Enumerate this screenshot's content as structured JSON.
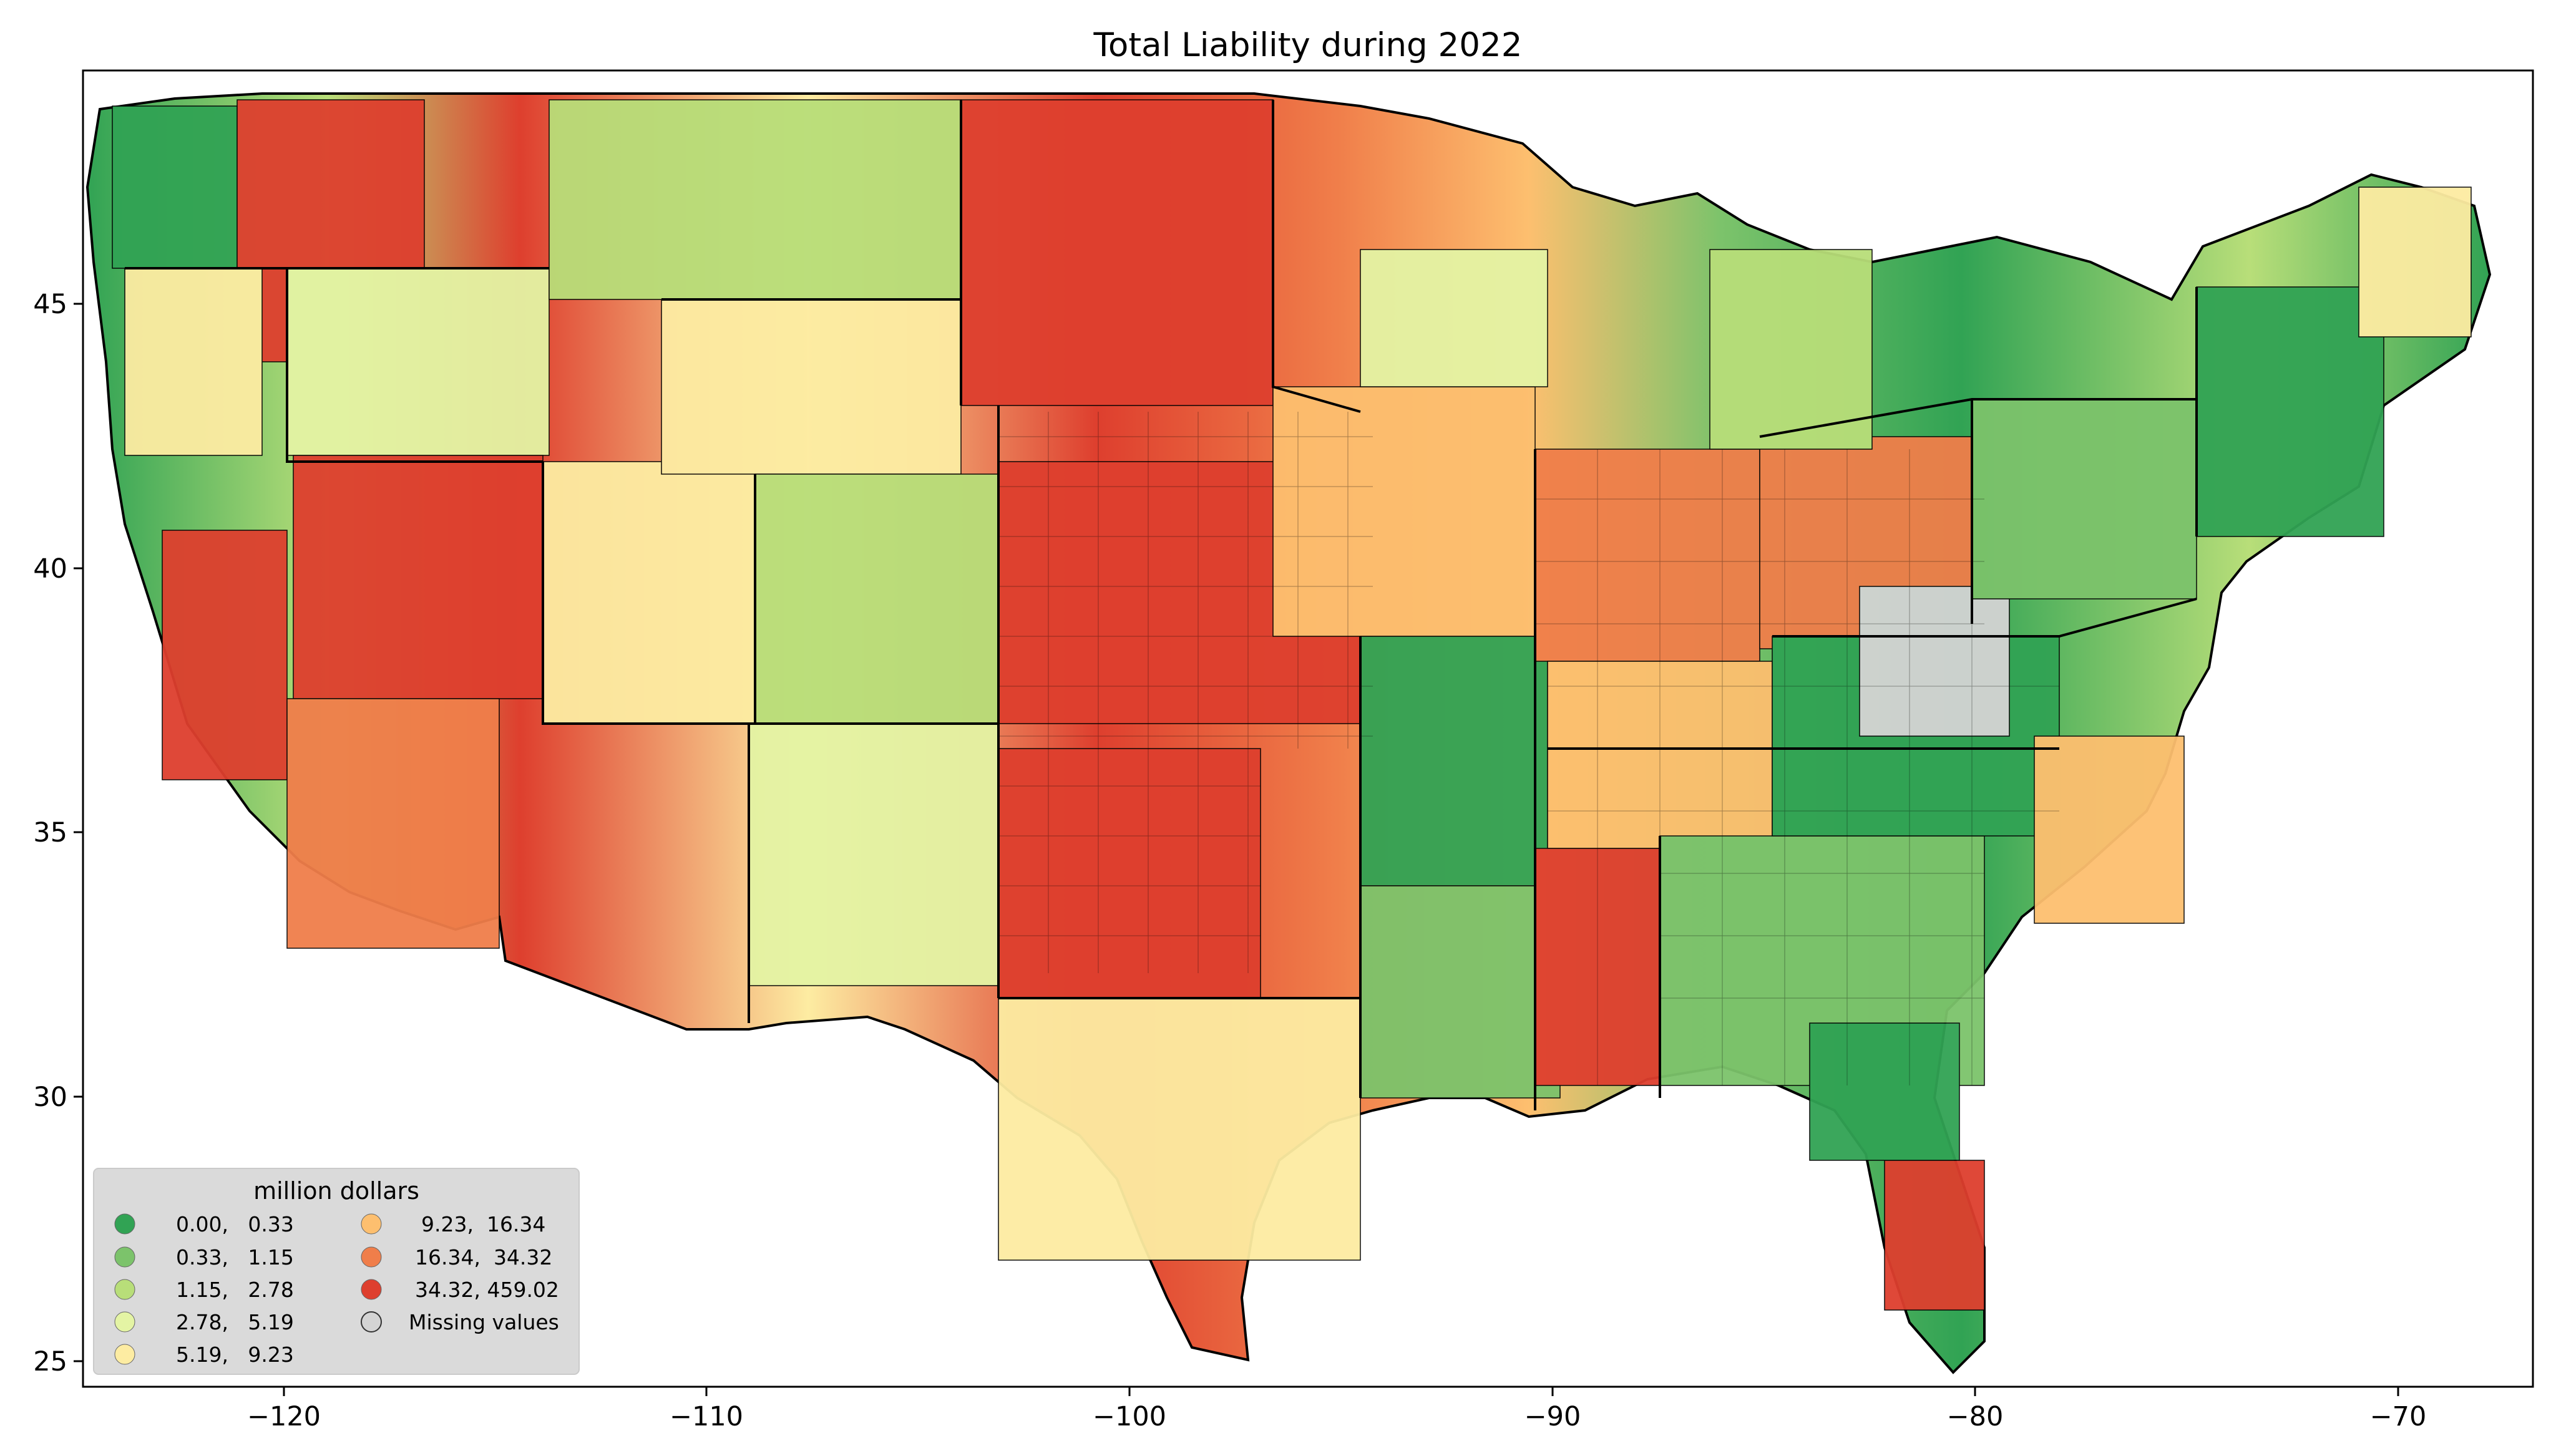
{
  "title": "Total Liability during 2022",
  "axes": {
    "x_ticks": [
      {
        "value": -120,
        "label": "−120"
      },
      {
        "value": -110,
        "label": "−110"
      },
      {
        "value": -100,
        "label": "−100"
      },
      {
        "value": -90,
        "label": "−90"
      },
      {
        "value": -80,
        "label": "−80"
      },
      {
        "value": -70,
        "label": "−70"
      }
    ],
    "y_ticks": [
      {
        "value": 45,
        "label": "45"
      },
      {
        "value": 40,
        "label": "40"
      },
      {
        "value": 35,
        "label": "35"
      },
      {
        "value": 30,
        "label": "30"
      },
      {
        "value": 25,
        "label": "25"
      }
    ],
    "xlim": [
      -124.8,
      -66.9
    ],
    "ylim": [
      24.5,
      49.4
    ]
  },
  "legend": {
    "title": "million dollars",
    "placement": "bottom-left",
    "entries": [
      {
        "label": "0.00,   0.33",
        "color": "#31a354"
      },
      {
        "label": "0.33,   1.15",
        "color": "#7cc36b"
      },
      {
        "label": "1.15,   2.78",
        "color": "#b8de79"
      },
      {
        "label": "2.78,   5.19",
        "color": "#e4f4a4"
      },
      {
        "label": "5.19,   9.23",
        "color": "#fdeca2"
      },
      {
        "label": "9.23,  16.34",
        "color": "#fdbf6f"
      },
      {
        "label": "16.34,  34.32",
        "color": "#f07e4a"
      },
      {
        "label": "34.32, 459.02",
        "color": "#de3f2e"
      },
      {
        "label": "Missing values",
        "color": "#d4d4d4"
      }
    ]
  },
  "colors": {
    "missing": "#d4d4d4",
    "county_border": "#000000",
    "legend_background": "#d9d9d9"
  }
}
